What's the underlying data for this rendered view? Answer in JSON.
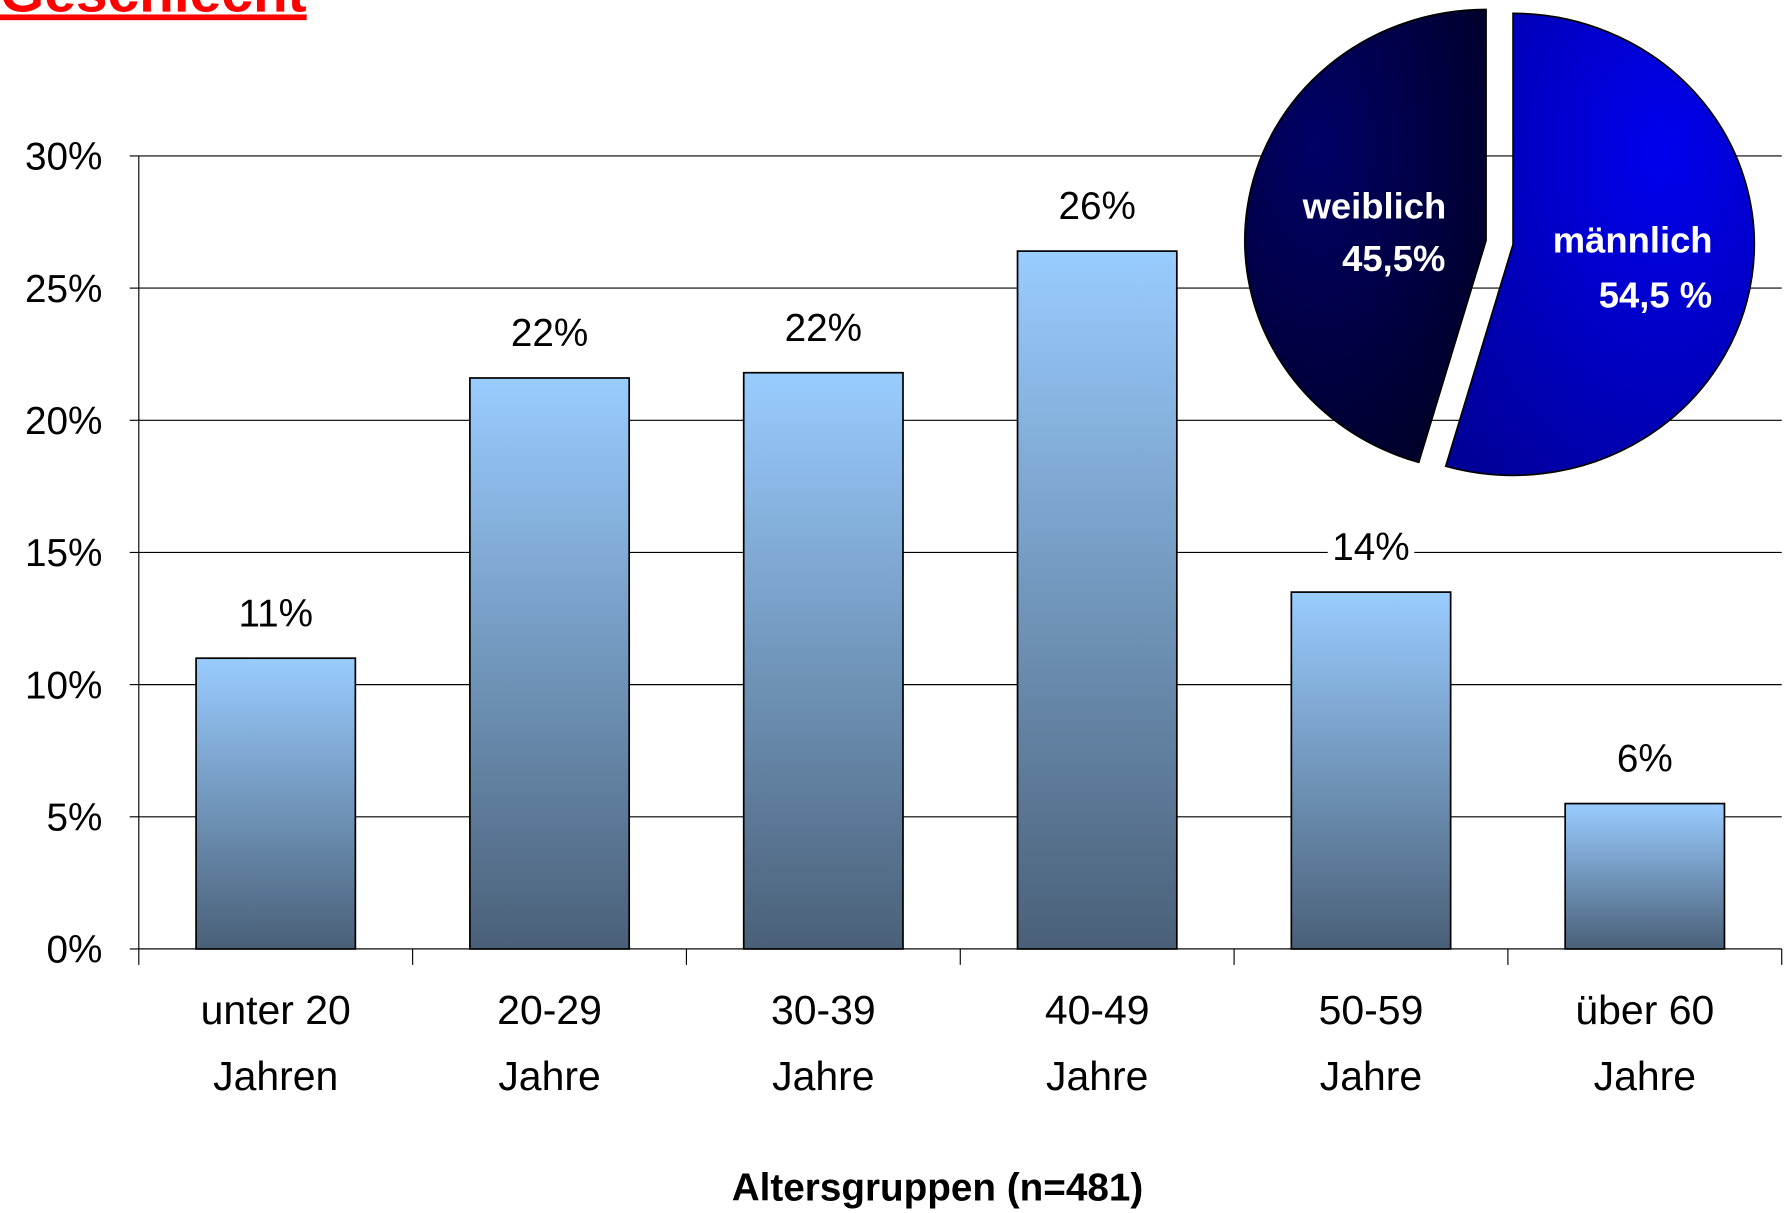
{
  "title": "Geschlecht",
  "chart_data": [
    {
      "type": "bar",
      "categories": [
        "unter 20 Jahren",
        "20-29 Jahre",
        "30-39 Jahre",
        "40-49 Jahre",
        "50-59 Jahre",
        "über 60 Jahre"
      ],
      "values": [
        11.0,
        21.6,
        21.8,
        26.4,
        13.5,
        5.5
      ],
      "value_labels": [
        "11%",
        "22%",
        "22%",
        "26%",
        "14%",
        "6%"
      ],
      "xlabel": "Altersgruppen (n=481)",
      "ylim": [
        0,
        30
      ],
      "yticks": [
        {
          "value": 0,
          "label": "0%"
        },
        {
          "value": 5,
          "label": "5%"
        },
        {
          "value": 10,
          "label": "10%"
        },
        {
          "value": 15,
          "label": "15%"
        },
        {
          "value": 20,
          "label": "20%"
        },
        {
          "value": 25,
          "label": "25%"
        },
        {
          "value": 30,
          "label": "30%"
        }
      ],
      "grid": true,
      "color": [
        "#99ccff",
        "#4a6078"
      ]
    },
    {
      "type": "pie",
      "categories": [
        "weiblich",
        "männlich"
      ],
      "values": [
        45.5,
        54.5
      ],
      "value_labels": [
        "45,5%",
        "54,5 %"
      ],
      "colors": [
        "#000066",
        "#0000ee"
      ]
    }
  ]
}
